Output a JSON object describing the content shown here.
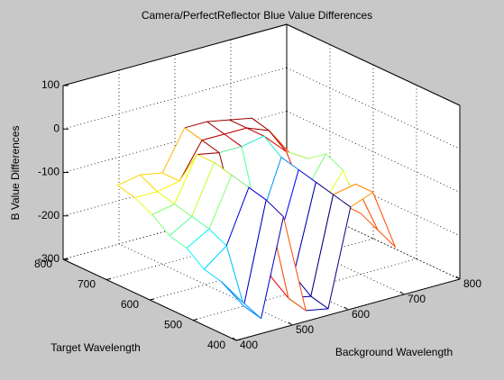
{
  "chart_data": {
    "type": "mesh",
    "title": "Camera/PerfectReflector Blue Value Differences",
    "xlabel": "Background Wavelength",
    "ylabel": "Target Wavelength",
    "zlabel": "B Value Differences",
    "x": [
      420,
      460,
      500,
      540,
      580,
      620,
      660,
      700
    ],
    "y": [
      420,
      460,
      500,
      540,
      580,
      620,
      660,
      700
    ],
    "z": [
      [
        -220,
        -280,
        -60,
        -290,
        -300,
        -80,
        -60,
        -200
      ],
      [
        -200,
        -270,
        -40,
        -280,
        -290,
        -70,
        -60,
        -180
      ],
      [
        -190,
        -150,
        -30,
        -250,
        -260,
        -60,
        -120,
        -160
      ],
      [
        -160,
        -130,
        -20,
        -200,
        -220,
        -50,
        -150,
        -80
      ],
      [
        -150,
        -120,
        -10,
        -160,
        -180,
        -40,
        -140,
        -60
      ],
      [
        -120,
        -110,
        -10,
        -20,
        -20,
        -10,
        -60,
        -90
      ],
      [
        -100,
        -100,
        -90,
        -10,
        -10,
        -10,
        -30,
        -100
      ],
      [
        -90,
        -80,
        -90,
        0,
        0,
        -10,
        -20,
        -120
      ]
    ],
    "xlim": [
      400,
      800
    ],
    "ylim": [
      400,
      800
    ],
    "zlim": [
      -300,
      100
    ],
    "xticks": [
      400,
      500,
      600,
      700,
      800
    ],
    "yticks": [
      400,
      500,
      600,
      700,
      800
    ],
    "zticks": [
      -300,
      -200,
      -100,
      0,
      100
    ],
    "grid": true,
    "colormap": "jet"
  }
}
